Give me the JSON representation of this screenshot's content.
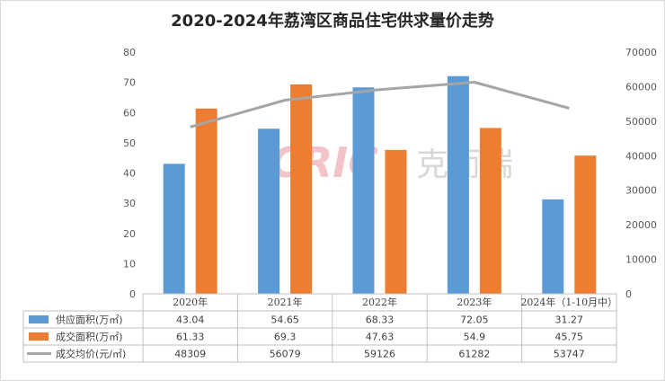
{
  "chart_data": {
    "type": "bar",
    "title": "2020-2024年荔湾区商品住宅供求量价走势",
    "categories": [
      "2020年",
      "2021年",
      "2022年",
      "2023年",
      "2024年（1-10月中）"
    ],
    "series": [
      {
        "name": "供应面积(万㎡)",
        "type": "bar",
        "axis": "left",
        "color": "#5b9bd5",
        "values": [
          43.04,
          54.65,
          68.33,
          72.05,
          31.27
        ]
      },
      {
        "name": "成交面积(万㎡)",
        "type": "bar",
        "axis": "left",
        "color": "#ed7d31",
        "values": [
          61.33,
          69.3,
          47.63,
          54.9,
          45.75
        ]
      },
      {
        "name": "成交均价(元/㎡)",
        "type": "line",
        "axis": "right",
        "color": "#a5a5a5",
        "values": [
          48309,
          56079,
          59126,
          61282,
          53747
        ]
      }
    ],
    "yleft": {
      "ylim": [
        0,
        80
      ],
      "ticks": [
        "0",
        "10",
        "20",
        "30",
        "40",
        "50",
        "60",
        "70",
        "80"
      ]
    },
    "yright": {
      "ylim": [
        0,
        70000
      ],
      "ticks": [
        "0",
        "10000",
        "20000",
        "30000",
        "40000",
        "50000",
        "60000",
        "70000"
      ]
    },
    "table": {
      "rows": [
        {
          "label": "供应面积(万㎡)",
          "cells": [
            "43.04",
            "54.65",
            "68.33",
            "72.05",
            "31.27"
          ]
        },
        {
          "label": "成交面积(万㎡)",
          "cells": [
            "61.33",
            "69.3",
            "47.63",
            "54.9",
            "45.75"
          ]
        },
        {
          "label": "成交均价(元/㎡)",
          "cells": [
            "48309",
            "56079",
            "59126",
            "61282",
            "53747"
          ]
        }
      ]
    },
    "grid": false,
    "legend": "data-table"
  },
  "watermark": {
    "logo_text": "CRIC",
    "brand_text": "克而瑞"
  }
}
